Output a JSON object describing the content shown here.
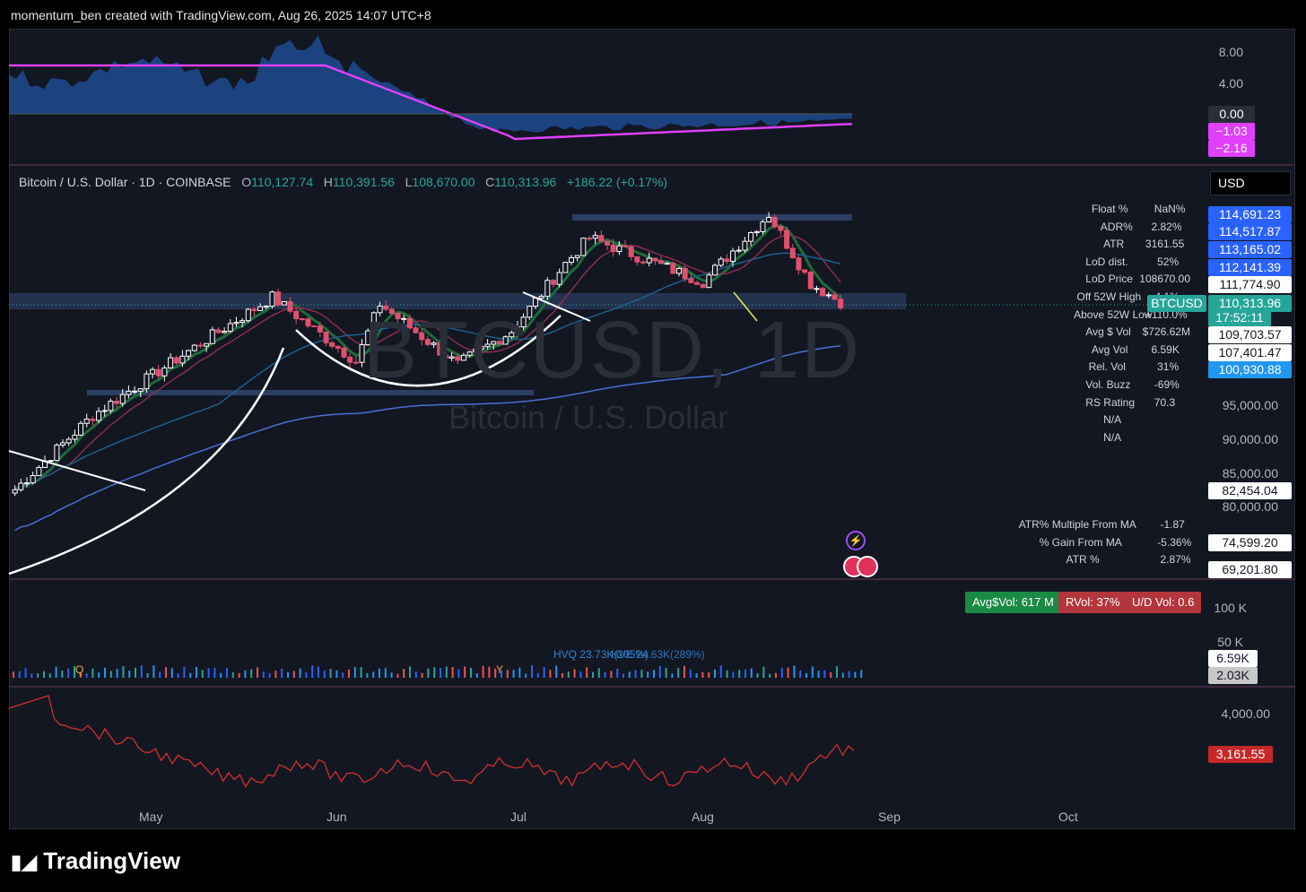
{
  "header": {
    "creator_text": "momentum_ben created with TradingView.com, Aug 26, 2025 14:07 UTC+8"
  },
  "footer": {
    "brand": "TradingView"
  },
  "currency_button": "USD",
  "legend": {
    "title": "Bitcoin / U.S. Dollar · 1D · COINBASE",
    "open_label": "O",
    "open": "110,127.74",
    "high_label": "H",
    "high": "110,391.56",
    "low_label": "L",
    "low": "108,670.00",
    "close_label": "C",
    "close": "110,313.96",
    "change": "+186.22 (+0.17%)"
  },
  "watermark": {
    "symbol": "BTCUSD, 1D",
    "name": "Bitcoin / U.S. Dollar"
  },
  "stats_table": [
    {
      "label": "Float %",
      "value": "NaN%"
    },
    {
      "label": "ADR%",
      "value": "2.82%"
    },
    {
      "label": "ATR",
      "value": "3161.55"
    },
    {
      "label": "LoD dist.",
      "value": "52%"
    },
    {
      "label": "LoD Price",
      "value": "108670.00"
    },
    {
      "label": "Off 52W High",
      "value": "-4.1%"
    },
    {
      "label": "Above 52W Low",
      "value": "+110.0%"
    },
    {
      "label": "Avg $ Vol",
      "value": "$726.62M"
    },
    {
      "label": "Avg Vol",
      "value": "6.59K"
    },
    {
      "label": "Rel. Vol",
      "value": "31%"
    },
    {
      "label": "Vol. Buzz",
      "value": "-69%"
    },
    {
      "label": "RS Rating",
      "value": "70.3"
    },
    {
      "label": "N/A",
      "value": ""
    },
    {
      "label": "N/A",
      "value": ""
    }
  ],
  "ma_stats": [
    {
      "label": "ATR% Multiple From MA",
      "value": "-1.87"
    },
    {
      "label": "% Gain From MA",
      "value": "-5.36%"
    },
    {
      "label": "ATR %",
      "value": "2.87%"
    }
  ],
  "price_axis": {
    "ticks": [
      "95,000.00",
      "90,000.00",
      "85,000.00",
      "80,000.00"
    ],
    "markers": {
      "m1": "114,691.23",
      "m2": "114,517.87",
      "m3": "113,165.02",
      "m4": "112,141.39",
      "m5": "111,774.90",
      "symbol": "BTCUSD",
      "last": "110,313.96",
      "countdown": "17:52:11",
      "m6": "109,703.57",
      "m7": "107,401.47",
      "m8": "100,930.88",
      "m9": "82,454.04",
      "m10": "74,599.20",
      "m11": "69,201.80"
    }
  },
  "rs_panel": {
    "ticks": [
      "8.00",
      "4.00"
    ],
    "markers": [
      "0.00",
      "−1.03",
      "−2.16"
    ]
  },
  "volume_panel": {
    "ticks": [
      "100 K",
      "50 K"
    ],
    "markers": [
      "6.59K",
      "2.03K"
    ],
    "badges": {
      "avg_dollar_vol": "Avg$Vol: 617 M",
      "rvol": "RVol: 37%",
      "ud_vol": "U/D Vol: 0.6"
    },
    "hvq_label": "HVQ 23.73K(205%)",
    "hvq_label2": "HVE 24.63K(289%)",
    "earnings_marks": [
      "Q",
      "Y"
    ]
  },
  "atr_panel": {
    "ticks": [
      "4,000.00"
    ],
    "marker": "3,161.55"
  },
  "time_axis": [
    "May",
    "Jun",
    "Jul",
    "Aug",
    "Sep",
    "Oct"
  ],
  "colors": {
    "bg": "#131722",
    "up": "#26a69a",
    "down": "#ef5350",
    "candle_down": "#e0506e",
    "ema_fast": "#2e7d32",
    "sma50": "#1e5f8a",
    "sma200": "#4a6fd4",
    "zone": "#2b3f63",
    "rs_line": "#e040fb",
    "atr_line": "#d32f2f"
  },
  "chart_data": {
    "type": "candlestick",
    "title": "Bitcoin / U.S. Dollar · 1D · COINBASE",
    "x_range": [
      "2025-04-08",
      "2025-10-25"
    ],
    "y_range": [
      72000,
      118000
    ],
    "price_anchors": [
      {
        "date": "2025-04-09",
        "close": 82500
      },
      {
        "date": "2025-04-22",
        "close": 93500
      },
      {
        "date": "2025-05-08",
        "close": 103000
      },
      {
        "date": "2025-05-22",
        "close": 111000
      },
      {
        "date": "2025-06-05",
        "close": 101500
      },
      {
        "date": "2025-06-09",
        "close": 110000
      },
      {
        "date": "2025-06-22",
        "close": 101000
      },
      {
        "date": "2025-07-01",
        "close": 106000
      },
      {
        "date": "2025-07-10",
        "close": 116000
      },
      {
        "date": "2025-07-14",
        "close": 119800
      },
      {
        "date": "2025-08-02",
        "close": 113300
      },
      {
        "date": "2025-08-13",
        "close": 123300
      },
      {
        "date": "2025-08-20",
        "close": 113000
      },
      {
        "date": "2025-08-25",
        "close": 110300
      }
    ],
    "volume_range_k": [
      0,
      120
    ],
    "atr_range": [
      2000,
      5000
    ]
  }
}
